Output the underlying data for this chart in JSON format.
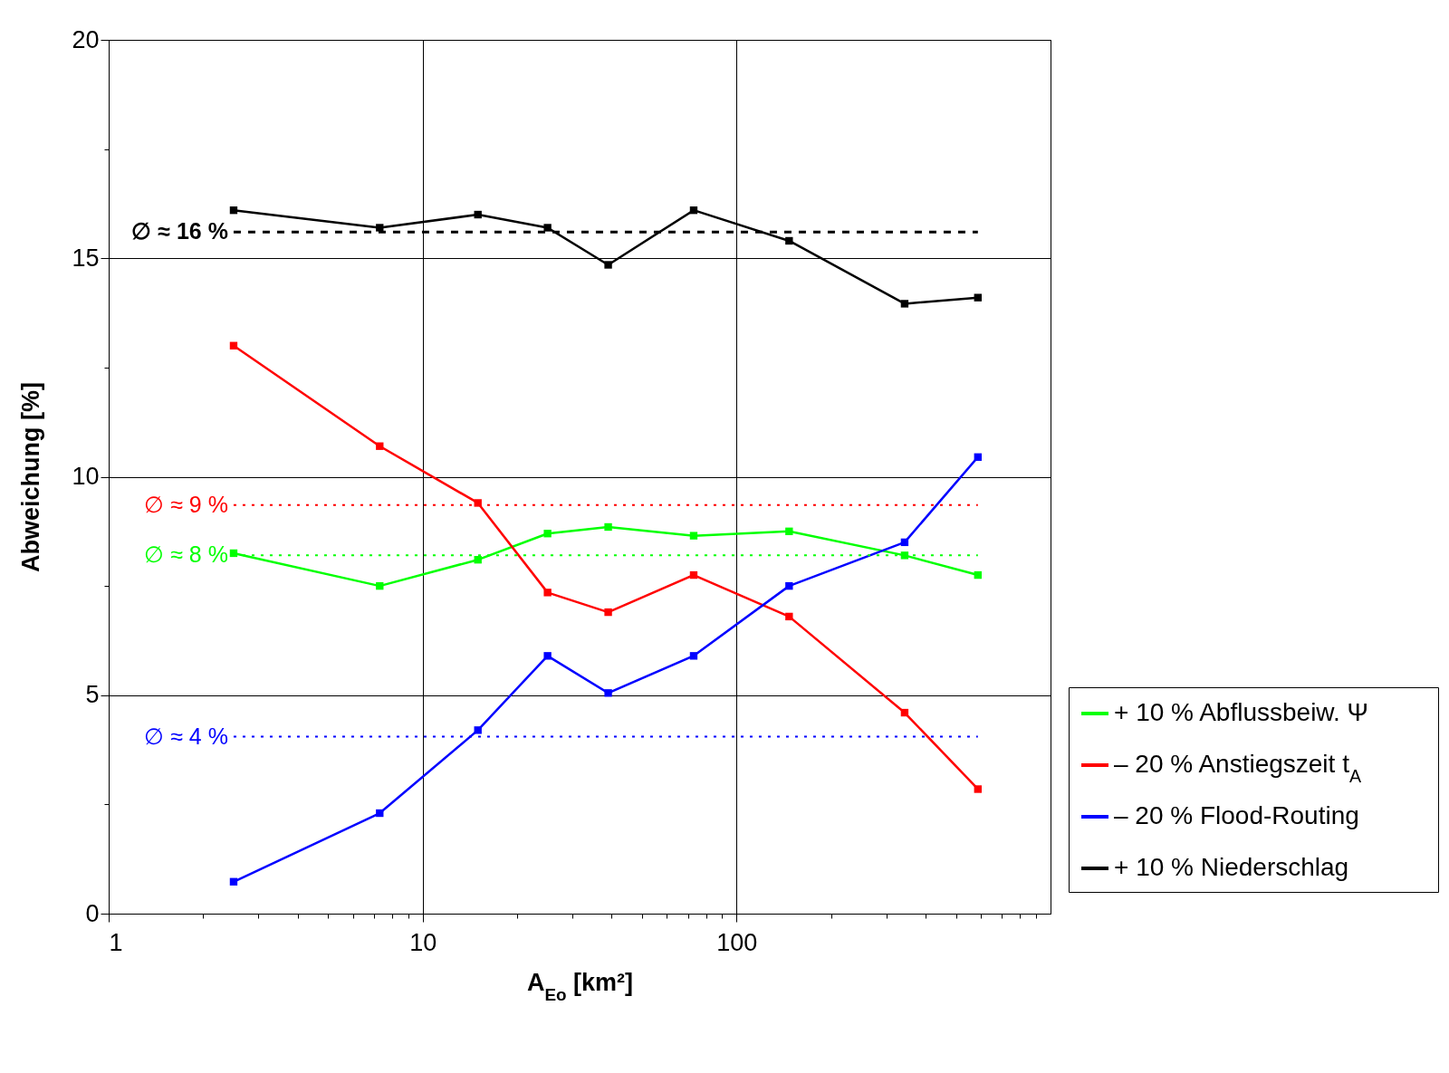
{
  "chart_data": {
    "type": "line",
    "xlabel": "A$_{Eo}$ [km²]",
    "ylabel": "Abweichung [%]",
    "x": [
      2.5,
      7.3,
      15,
      25,
      39,
      73,
      147,
      343,
      587
    ],
    "series": [
      {
        "name": "+ 10 % Abflussbeiw. Ψ",
        "color": "#00ff00",
        "values": [
          8.25,
          7.5,
          8.1,
          8.7,
          8.85,
          8.65,
          8.75,
          8.2,
          7.75
        ]
      },
      {
        "name": "– 20 % Anstiegszeit t$_{A}$",
        "color": "#ff0000",
        "values": [
          13.0,
          10.7,
          9.4,
          7.35,
          6.9,
          7.75,
          6.8,
          4.6,
          2.85
        ]
      },
      {
        "name": "– 20 % Flood-Routing",
        "color": "#0000ff",
        "values": [
          0.73,
          2.3,
          4.2,
          5.9,
          5.05,
          5.9,
          7.5,
          8.5,
          10.45
        ]
      },
      {
        "name": "+ 10 % Niederschlag",
        "color": "#000000",
        "values": [
          16.1,
          15.7,
          16.0,
          15.7,
          14.85,
          16.1,
          15.4,
          13.96,
          14.1
        ]
      }
    ],
    "ref_lines": [
      {
        "axis": "y",
        "value": 15.6,
        "label": "∅ ≈ 16 %",
        "color": "#000000",
        "line_style": "dashed"
      },
      {
        "axis": "y",
        "value": 9.35,
        "label": "∅ ≈ 9 %",
        "color": "#ff0000",
        "line_style": "dotted"
      },
      {
        "axis": "y",
        "value": 8.2,
        "label": "∅ ≈ 8 %",
        "color": "#00ff00",
        "line_style": "dotted"
      },
      {
        "axis": "y",
        "value": 4.05,
        "label": "∅ ≈ 4 %",
        "color": "#0000ff",
        "line_style": "dotted"
      }
    ],
    "log": "x",
    "xlim": [
      1,
      1000
    ],
    "ylim": [
      0,
      20
    ],
    "xticks": [
      1,
      {
        "value": 2,
        "label": null
      },
      {
        "value": 3,
        "label": null
      },
      {
        "value": 4,
        "label": null
      },
      {
        "value": 5,
        "label": null
      },
      {
        "value": 6,
        "label": null
      },
      {
        "value": 7,
        "label": null
      },
      {
        "value": 8,
        "label": null
      },
      {
        "value": 9,
        "label": null
      },
      10,
      {
        "value": 20,
        "label": null
      },
      {
        "value": 30,
        "label": null
      },
      {
        "value": 40,
        "label": null
      },
      {
        "value": 50,
        "label": null
      },
      {
        "value": 60,
        "label": null
      },
      {
        "value": 70,
        "label": null
      },
      {
        "value": 80,
        "label": null
      },
      {
        "value": 90,
        "label": null
      },
      100,
      {
        "value": 200,
        "label": null
      },
      {
        "value": 300,
        "label": null
      },
      {
        "value": 400,
        "label": null
      },
      {
        "value": 500,
        "label": null
      },
      {
        "value": 600,
        "label": null
      },
      {
        "value": 700,
        "label": null
      },
      {
        "value": 800,
        "label": null
      },
      {
        "value": 900,
        "label": null
      }
    ],
    "yticks": [
      0,
      {
        "value": 2.5,
        "label": null
      },
      5,
      {
        "value": 7.5,
        "label": null
      },
      10,
      {
        "value": 12.5,
        "label": null
      },
      15,
      {
        "value": 17.5,
        "label": null
      },
      20
    ],
    "grid": true,
    "legend": "bottom right",
    "marker": "square",
    "line_style": "solid"
  }
}
